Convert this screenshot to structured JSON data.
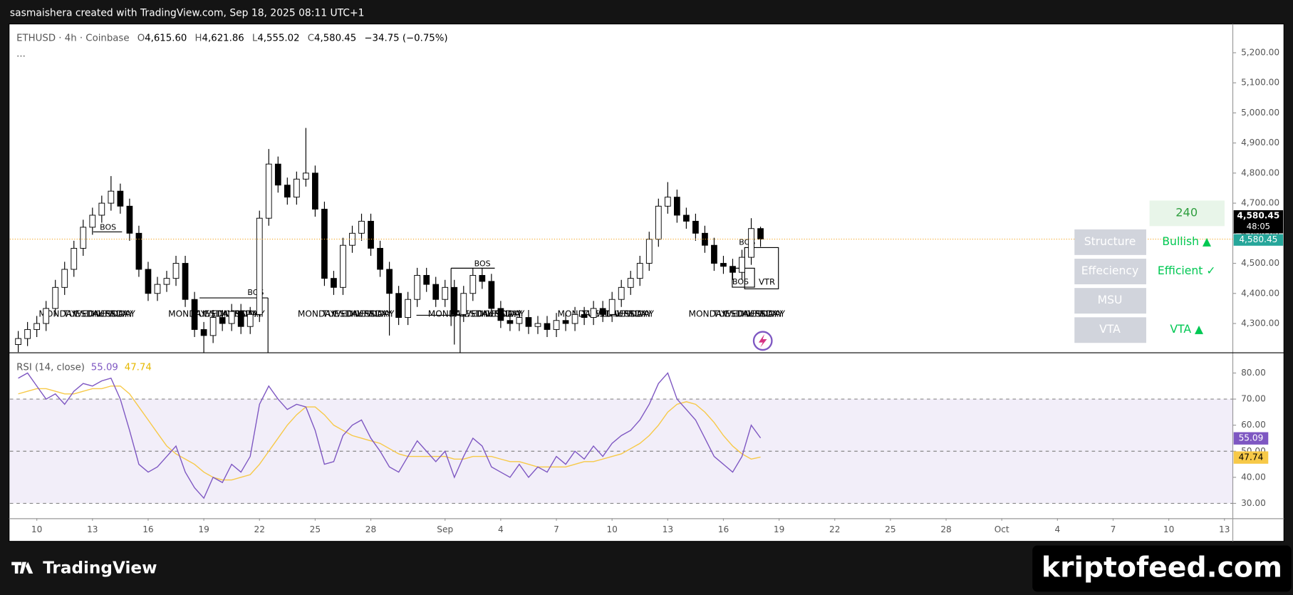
{
  "header": {
    "text": "sasmaishera created with TradingView.com, Sep 18, 2025 08:11 UTC+1"
  },
  "chart_data": {
    "type": "candlestick",
    "symbol": "ETHUSD · 4h · Coinbase",
    "legend": {
      "O": "4,615.60",
      "H": "4,621.86",
      "L": "4,555.02",
      "C": "4,580.45"
    },
    "change": "−34.75 (−0.75%)",
    "more": "...",
    "up_color": "#ffffff",
    "down_color": "#000000",
    "outline_color": "#000000",
    "candles": [
      [
        4230,
        4275,
        4205,
        4250
      ],
      [
        4250,
        4305,
        4225,
        4280
      ],
      [
        4280,
        4325,
        4255,
        4300
      ],
      [
        4300,
        4375,
        4275,
        4350
      ],
      [
        4350,
        4445,
        4325,
        4420
      ],
      [
        4420,
        4505,
        4395,
        4480
      ],
      [
        4480,
        4575,
        4455,
        4550
      ],
      [
        4550,
        4645,
        4525,
        4620
      ],
      [
        4620,
        4685,
        4595,
        4660
      ],
      [
        4660,
        4725,
        4635,
        4700
      ],
      [
        4700,
        4790,
        4675,
        4740
      ],
      [
        4740,
        4765,
        4665,
        4690
      ],
      [
        4690,
        4715,
        4575,
        4600
      ],
      [
        4600,
        4625,
        4455,
        4480
      ],
      [
        4480,
        4505,
        4375,
        4400
      ],
      [
        4400,
        4455,
        4375,
        4430
      ],
      [
        4430,
        4475,
        4405,
        4450
      ],
      [
        4450,
        4525,
        4425,
        4500
      ],
      [
        4500,
        4525,
        4355,
        4380
      ],
      [
        4380,
        4405,
        4255,
        4280
      ],
      [
        4280,
        4305,
        4200,
        4260
      ],
      [
        4260,
        4345,
        4235,
        4320
      ],
      [
        4320,
        4345,
        4275,
        4300
      ],
      [
        4300,
        4365,
        4275,
        4340
      ],
      [
        4340,
        4365,
        4265,
        4290
      ],
      [
        4290,
        4355,
        4265,
        4330
      ],
      [
        4330,
        4675,
        4305,
        4650
      ],
      [
        4650,
        4880,
        4625,
        4830
      ],
      [
        4830,
        4855,
        4735,
        4760
      ],
      [
        4760,
        4785,
        4695,
        4720
      ],
      [
        4720,
        4805,
        4695,
        4780
      ],
      [
        4780,
        4950,
        4755,
        4800
      ],
      [
        4800,
        4825,
        4655,
        4680
      ],
      [
        4680,
        4705,
        4425,
        4450
      ],
      [
        4450,
        4475,
        4395,
        4420
      ],
      [
        4420,
        4585,
        4395,
        4560
      ],
      [
        4560,
        4625,
        4535,
        4600
      ],
      [
        4600,
        4665,
        4575,
        4640
      ],
      [
        4640,
        4665,
        4525,
        4550
      ],
      [
        4550,
        4575,
        4455,
        4480
      ],
      [
        4480,
        4505,
        4260,
        4400
      ],
      [
        4400,
        4425,
        4295,
        4320
      ],
      [
        4320,
        4405,
        4295,
        4380
      ],
      [
        4380,
        4485,
        4355,
        4460
      ],
      [
        4460,
        4485,
        4405,
        4430
      ],
      [
        4430,
        4455,
        4355,
        4380
      ],
      [
        4380,
        4445,
        4355,
        4420
      ],
      [
        4420,
        4445,
        4230,
        4330
      ],
      [
        4330,
        4425,
        4305,
        4400
      ],
      [
        4400,
        4485,
        4375,
        4460
      ],
      [
        4460,
        4485,
        4415,
        4440
      ],
      [
        4440,
        4465,
        4325,
        4350
      ],
      [
        4350,
        4375,
        4285,
        4310
      ],
      [
        4310,
        4335,
        4275,
        4300
      ],
      [
        4300,
        4345,
        4275,
        4320
      ],
      [
        4320,
        4345,
        4265,
        4290
      ],
      [
        4290,
        4325,
        4265,
        4300
      ],
      [
        4300,
        4325,
        4255,
        4280
      ],
      [
        4280,
        4335,
        4255,
        4310
      ],
      [
        4310,
        4335,
        4275,
        4300
      ],
      [
        4300,
        4355,
        4275,
        4330
      ],
      [
        4330,
        4355,
        4295,
        4320
      ],
      [
        4320,
        4375,
        4295,
        4350
      ],
      [
        4350,
        4375,
        4305,
        4330
      ],
      [
        4330,
        4405,
        4305,
        4380
      ],
      [
        4380,
        4445,
        4355,
        4420
      ],
      [
        4420,
        4475,
        4395,
        4450
      ],
      [
        4450,
        4525,
        4425,
        4500
      ],
      [
        4500,
        4605,
        4475,
        4580
      ],
      [
        4580,
        4715,
        4555,
        4690
      ],
      [
        4690,
        4770,
        4665,
        4720
      ],
      [
        4720,
        4745,
        4635,
        4660
      ],
      [
        4660,
        4685,
        4615,
        4640
      ],
      [
        4640,
        4665,
        4575,
        4600
      ],
      [
        4600,
        4625,
        4535,
        4560
      ],
      [
        4560,
        4585,
        4475,
        4500
      ],
      [
        4500,
        4525,
        4465,
        4490
      ],
      [
        4490,
        4515,
        4445,
        4470
      ],
      [
        4470,
        4545,
        4445,
        4520
      ],
      [
        4520,
        4650,
        4495,
        4615.6
      ],
      [
        4615.6,
        4621.86,
        4555.02,
        4580.45
      ]
    ],
    "xlim": [
      -0.9,
      130.9
    ],
    "xticks": [
      {
        "value": 2,
        "label": "10"
      },
      {
        "value": 8,
        "label": "13"
      },
      {
        "value": 14,
        "label": "16"
      },
      {
        "value": 20,
        "label": "19"
      },
      {
        "value": 26,
        "label": "22"
      },
      {
        "value": 32,
        "label": "25"
      },
      {
        "value": 38,
        "label": "28"
      },
      {
        "value": 46,
        "label": "Sep"
      },
      {
        "value": 52,
        "label": "4"
      },
      {
        "value": 58,
        "label": "7"
      },
      {
        "value": 64,
        "label": "10"
      },
      {
        "value": 70,
        "label": "13"
      },
      {
        "value": 76,
        "label": "16"
      },
      {
        "value": 82,
        "label": "19"
      },
      {
        "value": 88,
        "label": "22"
      },
      {
        "value": 94,
        "label": "25"
      },
      {
        "value": 100,
        "label": "28"
      },
      {
        "value": 106,
        "label": "Oct"
      },
      {
        "value": 112,
        "label": "4"
      },
      {
        "value": 118,
        "label": "7"
      },
      {
        "value": 124,
        "label": "10"
      },
      {
        "value": 130,
        "label": "13"
      }
    ],
    "ylim": [
      4204,
      5293
    ],
    "yticks": [
      {
        "value": 4300,
        "label": "4,300.00"
      },
      {
        "value": 4400,
        "label": "4,400.00"
      },
      {
        "value": 4500,
        "label": "4,500.00"
      },
      {
        "value": 4600,
        "label": "4,600.00"
      },
      {
        "value": 4700,
        "label": "4,700.00"
      },
      {
        "value": 4800,
        "label": "4,800.00"
      },
      {
        "value": 4900,
        "label": "4,900.00"
      },
      {
        "value": 5000,
        "label": "5,000.00"
      },
      {
        "value": 5100,
        "label": "5,100.00"
      },
      {
        "value": 5200,
        "label": "5,200.00"
      }
    ],
    "last_price_label": "4,580.45",
    "countdown": "48:05",
    "price_line_color": "#f5a623",
    "annotations": {
      "bos": "BOS",
      "vtr": "VTR"
    },
    "day_labels": [
      "MONDAY",
      "TUESDAY",
      "WEDNESDAY",
      "THURSDAY",
      "FRIDAY"
    ],
    "rsi": {
      "title": "RSI (14, close)",
      "color": "#7e57c2",
      "ma_color": "#f7c948",
      "values": [
        78,
        80,
        75,
        70,
        72,
        68,
        73,
        76,
        75,
        77,
        78,
        70,
        58,
        45,
        42,
        44,
        48,
        52,
        42,
        36,
        32,
        40,
        38,
        45,
        42,
        48,
        68,
        75,
        70,
        66,
        68,
        67,
        58,
        45,
        46,
        56,
        60,
        62,
        55,
        50,
        44,
        42,
        48,
        54,
        50,
        46,
        50,
        40,
        48,
        55,
        52,
        44,
        42,
        40,
        45,
        40,
        44,
        42,
        48,
        45,
        50,
        47,
        52,
        48,
        53,
        56,
        58,
        62,
        68,
        76,
        80,
        70,
        66,
        62,
        55,
        48,
        45,
        42,
        48,
        60,
        55.09
      ],
      "ma": [
        72,
        73,
        74,
        74,
        73,
        72,
        72,
        73,
        74,
        74,
        75,
        75,
        72,
        67,
        62,
        57,
        52,
        49,
        47,
        45,
        42,
        40,
        39,
        39,
        40,
        41,
        45,
        50,
        55,
        60,
        64,
        67,
        67,
        64,
        60,
        58,
        56,
        55,
        54,
        53,
        51,
        49,
        48,
        48,
        48,
        48,
        48,
        47,
        47,
        48,
        48,
        48,
        47,
        46,
        46,
        45,
        44,
        44,
        44,
        44,
        45,
        46,
        46,
        47,
        48,
        49,
        51,
        53,
        56,
        60,
        65,
        68,
        69,
        68,
        65,
        61,
        56,
        52,
        49,
        47,
        47.74
      ],
      "ylim": [
        24.3,
        87.6
      ],
      "yticks": [
        {
          "value": 30,
          "label": "30.00"
        },
        {
          "value": 40,
          "label": "40.00"
        },
        {
          "value": 50,
          "label": "50.00"
        },
        {
          "value": 60,
          "label": "60.00"
        },
        {
          "value": 70,
          "label": "70.00"
        },
        {
          "value": 80,
          "label": "80.00"
        }
      ],
      "bands": [
        70,
        50,
        30
      ]
    }
  },
  "table": {
    "header": "240",
    "rows": [
      [
        "Structure",
        "Bullish ▲"
      ],
      [
        "Effeciency",
        "Efficient ✓"
      ],
      [
        "MSU"
      ],
      [
        "VTA",
        "VTA ▲"
      ]
    ]
  },
  "footer": {
    "logo": "TradingView",
    "watermark": "kriptofeed.com"
  }
}
